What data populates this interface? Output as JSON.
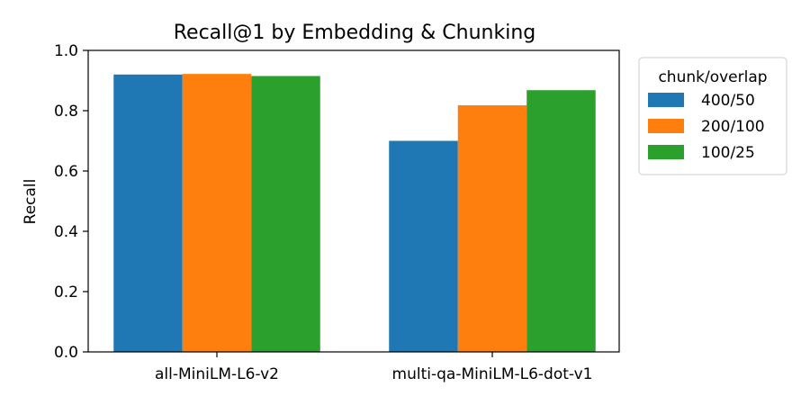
{
  "chart_data": {
    "type": "bar",
    "title": "Recall@1 by Embedding & Chunking",
    "xlabel": "",
    "ylabel": "Recall",
    "ylim": [
      0,
      1.0
    ],
    "yticks": [
      "0.0",
      "0.2",
      "0.4",
      "0.6",
      "0.8",
      "1.0"
    ],
    "categories": [
      "all-MiniLM-L6-v2",
      "multi-qa-MiniLM-L6-dot-v1"
    ],
    "series": [
      {
        "name": "400/50",
        "color": "#1f77b4",
        "values": [
          0.92,
          0.7
        ]
      },
      {
        "name": "200/100",
        "color": "#ff7f0e",
        "values": [
          0.922,
          0.818
        ]
      },
      {
        "name": "100/25",
        "color": "#2ca02c",
        "values": [
          0.915,
          0.868
        ]
      }
    ],
    "legend": {
      "title": "chunk/overlap",
      "placement": "outside-right-top"
    },
    "grid": false
  }
}
